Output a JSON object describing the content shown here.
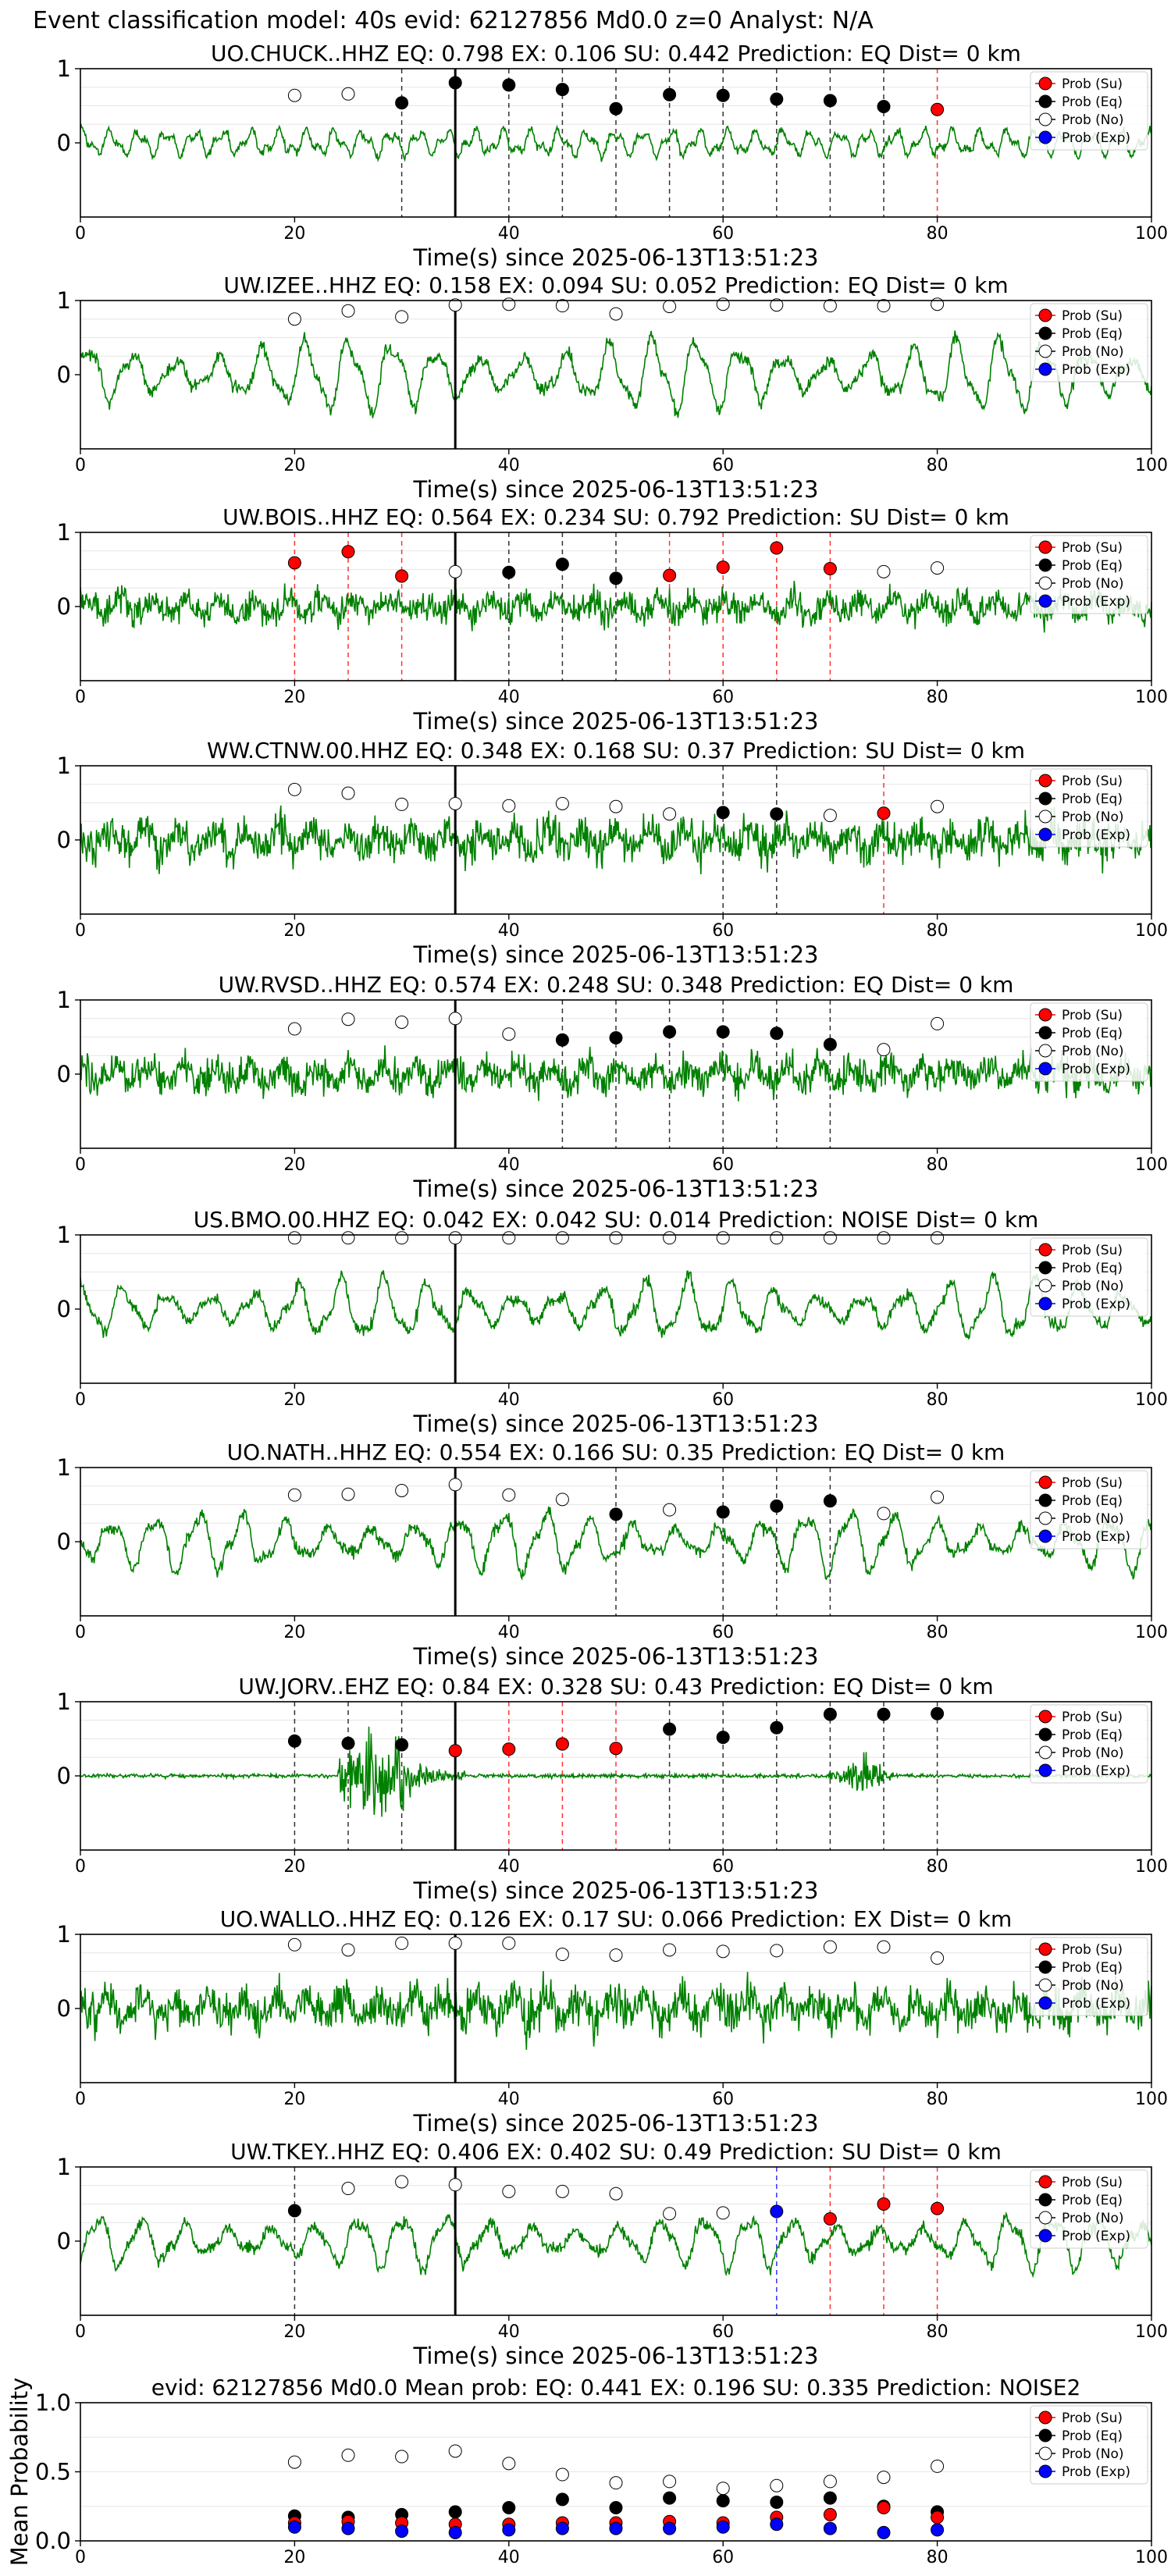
{
  "suptitle": "Event classification model: 40s evid: 62127856 Md0.0 z=0 Analyst: N/A",
  "legend": [
    {
      "label": "Prob (Su)",
      "color": "#ff0000"
    },
    {
      "label": "Prob (Eq)",
      "color": "#000000"
    },
    {
      "label": "Prob (No)",
      "color": "#ffffff"
    },
    {
      "label": "Prob (Exp)",
      "color": "#0000ff"
    }
  ],
  "waveform_color": "#008000",
  "chart_data": [
    {
      "type": "line",
      "title": "UO.CHUCK..HHZ   EQ: 0.798  EX: 0.106  SU: 0.442   Prediction: EQ    Dist= 0 km",
      "xlabel": "Time(s) since 2025-06-13T13:51:23",
      "xlim": [
        0,
        100
      ],
      "ylim": [
        -1,
        1
      ],
      "xticks": [
        0,
        20,
        40,
        60,
        80,
        100
      ],
      "yticks": [
        0,
        1
      ],
      "arrival": 35,
      "wave": {
        "style": "osc",
        "amp": 0.18,
        "seed": 11
      },
      "points": [
        {
          "t": 20,
          "p": 0.64,
          "c": "No"
        },
        {
          "t": 25,
          "p": 0.66,
          "c": "No"
        },
        {
          "t": 30,
          "p": 0.54,
          "c": "Eq"
        },
        {
          "t": 35,
          "p": 0.81,
          "c": "Eq"
        },
        {
          "t": 40,
          "p": 0.78,
          "c": "Eq"
        },
        {
          "t": 45,
          "p": 0.72,
          "c": "Eq"
        },
        {
          "t": 50,
          "p": 0.46,
          "c": "Eq"
        },
        {
          "t": 55,
          "p": 0.65,
          "c": "Eq"
        },
        {
          "t": 60,
          "p": 0.64,
          "c": "Eq"
        },
        {
          "t": 65,
          "p": 0.59,
          "c": "Eq"
        },
        {
          "t": 70,
          "p": 0.57,
          "c": "Eq"
        },
        {
          "t": 75,
          "p": 0.49,
          "c": "Eq"
        },
        {
          "t": 80,
          "p": 0.45,
          "c": "Su"
        }
      ]
    },
    {
      "type": "line",
      "title": "UW.IZEE..HHZ   EQ: 0.158  EX: 0.094  SU: 0.052   Prediction: EQ    Dist= 0 km",
      "xlabel": "Time(s) since 2025-06-13T13:51:23",
      "xlim": [
        0,
        100
      ],
      "ylim": [
        -1,
        1
      ],
      "xticks": [
        0,
        20,
        40,
        60,
        80,
        100
      ],
      "yticks": [
        0,
        1
      ],
      "arrival": 35,
      "wave": {
        "style": "swell",
        "amp": 0.55,
        "seed": 23
      },
      "points": [
        {
          "t": 20,
          "p": 0.75,
          "c": "No"
        },
        {
          "t": 25,
          "p": 0.86,
          "c": "No"
        },
        {
          "t": 30,
          "p": 0.78,
          "c": "No"
        },
        {
          "t": 35,
          "p": 0.94,
          "c": "No"
        },
        {
          "t": 40,
          "p": 0.95,
          "c": "No"
        },
        {
          "t": 45,
          "p": 0.93,
          "c": "No"
        },
        {
          "t": 50,
          "p": 0.82,
          "c": "No"
        },
        {
          "t": 55,
          "p": 0.92,
          "c": "No"
        },
        {
          "t": 60,
          "p": 0.95,
          "c": "No"
        },
        {
          "t": 65,
          "p": 0.94,
          "c": "No"
        },
        {
          "t": 70,
          "p": 0.93,
          "c": "No"
        },
        {
          "t": 75,
          "p": 0.93,
          "c": "No"
        },
        {
          "t": 80,
          "p": 0.95,
          "c": "No"
        }
      ]
    },
    {
      "type": "line",
      "title": "UW.BOIS..HHZ   EQ: 0.564  EX: 0.234  SU: 0.792   Prediction: SU    Dist= 0 km",
      "xlabel": "Time(s) since 2025-06-13T13:51:23",
      "xlim": [
        0,
        100
      ],
      "ylim": [
        -1,
        1
      ],
      "xticks": [
        0,
        20,
        40,
        60,
        80,
        100
      ],
      "yticks": [
        0,
        1
      ],
      "arrival": 35,
      "wave": {
        "style": "noisy",
        "amp": 0.35,
        "seed": 37
      },
      "points": [
        {
          "t": 20,
          "p": 0.59,
          "c": "Su"
        },
        {
          "t": 25,
          "p": 0.74,
          "c": "Su"
        },
        {
          "t": 30,
          "p": 0.41,
          "c": "Su"
        },
        {
          "t": 35,
          "p": 0.47,
          "c": "No"
        },
        {
          "t": 40,
          "p": 0.46,
          "c": "Eq"
        },
        {
          "t": 45,
          "p": 0.57,
          "c": "Eq"
        },
        {
          "t": 50,
          "p": 0.38,
          "c": "Eq"
        },
        {
          "t": 55,
          "p": 0.42,
          "c": "Su"
        },
        {
          "t": 60,
          "p": 0.53,
          "c": "Su"
        },
        {
          "t": 65,
          "p": 0.79,
          "c": "Su"
        },
        {
          "t": 70,
          "p": 0.51,
          "c": "Su"
        },
        {
          "t": 75,
          "p": 0.47,
          "c": "No"
        },
        {
          "t": 80,
          "p": 0.52,
          "c": "No"
        }
      ]
    },
    {
      "type": "line",
      "title": "WW.CTNW.00.HHZ   EQ: 0.348  EX: 0.168  SU: 0.37   Prediction: SU    Dist= 0 km",
      "xlabel": "Time(s) since 2025-06-13T13:51:23",
      "xlim": [
        0,
        100
      ],
      "ylim": [
        -1,
        1
      ],
      "xticks": [
        0,
        20,
        40,
        60,
        80,
        100
      ],
      "yticks": [
        0,
        1
      ],
      "arrival": 35,
      "wave": {
        "style": "noisy",
        "amp": 0.45,
        "seed": 41
      },
      "points": [
        {
          "t": 20,
          "p": 0.68,
          "c": "No"
        },
        {
          "t": 25,
          "p": 0.63,
          "c": "No"
        },
        {
          "t": 30,
          "p": 0.48,
          "c": "No"
        },
        {
          "t": 35,
          "p": 0.49,
          "c": "No"
        },
        {
          "t": 40,
          "p": 0.46,
          "c": "No"
        },
        {
          "t": 45,
          "p": 0.49,
          "c": "No"
        },
        {
          "t": 50,
          "p": 0.45,
          "c": "No"
        },
        {
          "t": 55,
          "p": 0.35,
          "c": "No"
        },
        {
          "t": 60,
          "p": 0.37,
          "c": "Eq"
        },
        {
          "t": 65,
          "p": 0.35,
          "c": "Eq"
        },
        {
          "t": 70,
          "p": 0.33,
          "c": "No"
        },
        {
          "t": 75,
          "p": 0.36,
          "c": "Su"
        },
        {
          "t": 80,
          "p": 0.45,
          "c": "No"
        }
      ]
    },
    {
      "type": "line",
      "title": "UW.RVSD..HHZ   EQ: 0.574  EX: 0.248  SU: 0.348   Prediction: EQ    Dist= 0 km",
      "xlabel": "Time(s) since 2025-06-13T13:51:23",
      "xlim": [
        0,
        100
      ],
      "ylim": [
        -1,
        1
      ],
      "xticks": [
        0,
        20,
        40,
        60,
        80,
        100
      ],
      "yticks": [
        0,
        1
      ],
      "arrival": 35,
      "wave": {
        "style": "noisy",
        "amp": 0.4,
        "seed": 53
      },
      "points": [
        {
          "t": 20,
          "p": 0.61,
          "c": "No"
        },
        {
          "t": 25,
          "p": 0.74,
          "c": "No"
        },
        {
          "t": 30,
          "p": 0.7,
          "c": "No"
        },
        {
          "t": 35,
          "p": 0.75,
          "c": "No"
        },
        {
          "t": 40,
          "p": 0.54,
          "c": "No"
        },
        {
          "t": 45,
          "p": 0.46,
          "c": "Eq"
        },
        {
          "t": 50,
          "p": 0.49,
          "c": "Eq"
        },
        {
          "t": 55,
          "p": 0.57,
          "c": "Eq"
        },
        {
          "t": 60,
          "p": 0.57,
          "c": "Eq"
        },
        {
          "t": 65,
          "p": 0.55,
          "c": "Eq"
        },
        {
          "t": 70,
          "p": 0.4,
          "c": "Eq"
        },
        {
          "t": 75,
          "p": 0.33,
          "c": "No"
        },
        {
          "t": 80,
          "p": 0.68,
          "c": "No"
        }
      ]
    },
    {
      "type": "line",
      "title": "US.BMO.00.HHZ   EQ: 0.042  EX: 0.042  SU: 0.014   Prediction: NOISE    Dist= 0 km",
      "xlabel": "Time(s) since 2025-06-13T13:51:23",
      "xlim": [
        0,
        100
      ],
      "ylim": [
        -1,
        1
      ],
      "xticks": [
        0,
        20,
        40,
        60,
        80,
        100
      ],
      "yticks": [
        0,
        1
      ],
      "arrival": 35,
      "wave": {
        "style": "swell",
        "amp": 0.45,
        "seed": 67
      },
      "points": [
        {
          "t": 20,
          "p": 0.96,
          "c": "No"
        },
        {
          "t": 25,
          "p": 0.96,
          "c": "No"
        },
        {
          "t": 30,
          "p": 0.96,
          "c": "No"
        },
        {
          "t": 35,
          "p": 0.96,
          "c": "No"
        },
        {
          "t": 40,
          "p": 0.96,
          "c": "No"
        },
        {
          "t": 45,
          "p": 0.96,
          "c": "No"
        },
        {
          "t": 50,
          "p": 0.96,
          "c": "No"
        },
        {
          "t": 55,
          "p": 0.96,
          "c": "No"
        },
        {
          "t": 60,
          "p": 0.96,
          "c": "No"
        },
        {
          "t": 65,
          "p": 0.96,
          "c": "No"
        },
        {
          "t": 70,
          "p": 0.96,
          "c": "No"
        },
        {
          "t": 75,
          "p": 0.96,
          "c": "No"
        },
        {
          "t": 80,
          "p": 0.96,
          "c": "No"
        }
      ]
    },
    {
      "type": "line",
      "title": "UO.NATH..HHZ   EQ: 0.554  EX: 0.166  SU: 0.35   Prediction: EQ    Dist= 0 km",
      "xlabel": "Time(s) since 2025-06-13T13:51:23",
      "xlim": [
        0,
        100
      ],
      "ylim": [
        -1,
        1
      ],
      "xticks": [
        0,
        20,
        40,
        60,
        80,
        100
      ],
      "yticks": [
        0,
        1
      ],
      "arrival": 35,
      "wave": {
        "style": "swell",
        "amp": 0.45,
        "seed": 71
      },
      "points": [
        {
          "t": 20,
          "p": 0.63,
          "c": "No"
        },
        {
          "t": 25,
          "p": 0.64,
          "c": "No"
        },
        {
          "t": 30,
          "p": 0.69,
          "c": "No"
        },
        {
          "t": 35,
          "p": 0.77,
          "c": "No"
        },
        {
          "t": 40,
          "p": 0.63,
          "c": "No"
        },
        {
          "t": 45,
          "p": 0.57,
          "c": "No"
        },
        {
          "t": 50,
          "p": 0.37,
          "c": "Eq"
        },
        {
          "t": 55,
          "p": 0.43,
          "c": "No"
        },
        {
          "t": 60,
          "p": 0.4,
          "c": "Eq"
        },
        {
          "t": 65,
          "p": 0.48,
          "c": "Eq"
        },
        {
          "t": 70,
          "p": 0.55,
          "c": "Eq"
        },
        {
          "t": 75,
          "p": 0.38,
          "c": "No"
        },
        {
          "t": 80,
          "p": 0.6,
          "c": "No"
        }
      ]
    },
    {
      "type": "line",
      "title": "UW.JORV..EHZ   EQ: 0.84  EX: 0.328  SU: 0.43   Prediction: EQ    Dist= 0 km",
      "xlabel": "Time(s) since 2025-06-13T13:51:23",
      "xlim": [
        0,
        100
      ],
      "ylim": [
        -1,
        1
      ],
      "xticks": [
        0,
        20,
        40,
        60,
        80,
        100
      ],
      "yticks": [
        0,
        1
      ],
      "arrival": 35,
      "wave": {
        "style": "event",
        "amp": 0.02,
        "seed": 83
      },
      "points": [
        {
          "t": 20,
          "p": 0.47,
          "c": "Eq"
        },
        {
          "t": 25,
          "p": 0.44,
          "c": "Eq"
        },
        {
          "t": 30,
          "p": 0.42,
          "c": "Eq"
        },
        {
          "t": 35,
          "p": 0.34,
          "c": "Su"
        },
        {
          "t": 40,
          "p": 0.36,
          "c": "Su"
        },
        {
          "t": 45,
          "p": 0.43,
          "c": "Su"
        },
        {
          "t": 50,
          "p": 0.37,
          "c": "Su"
        },
        {
          "t": 55,
          "p": 0.63,
          "c": "Eq"
        },
        {
          "t": 60,
          "p": 0.52,
          "c": "Eq"
        },
        {
          "t": 65,
          "p": 0.65,
          "c": "Eq"
        },
        {
          "t": 70,
          "p": 0.83,
          "c": "Eq"
        },
        {
          "t": 75,
          "p": 0.83,
          "c": "Eq"
        },
        {
          "t": 80,
          "p": 0.84,
          "c": "Eq"
        }
      ]
    },
    {
      "type": "line",
      "title": "UO.WALLO..HHZ   EQ: 0.126  EX: 0.17  SU: 0.066   Prediction: EX    Dist= 0 km",
      "xlabel": "Time(s) since 2025-06-13T13:51:23",
      "xlim": [
        0,
        100
      ],
      "ylim": [
        -1,
        1
      ],
      "xticks": [
        0,
        20,
        40,
        60,
        80,
        100
      ],
      "yticks": [
        0,
        1
      ],
      "arrival": 35,
      "wave": {
        "style": "noisy",
        "amp": 0.5,
        "seed": 97
      },
      "points": [
        {
          "t": 20,
          "p": 0.86,
          "c": "No"
        },
        {
          "t": 25,
          "p": 0.79,
          "c": "No"
        },
        {
          "t": 30,
          "p": 0.88,
          "c": "No"
        },
        {
          "t": 35,
          "p": 0.88,
          "c": "No"
        },
        {
          "t": 40,
          "p": 0.88,
          "c": "No"
        },
        {
          "t": 45,
          "p": 0.73,
          "c": "No"
        },
        {
          "t": 50,
          "p": 0.72,
          "c": "No"
        },
        {
          "t": 55,
          "p": 0.79,
          "c": "No"
        },
        {
          "t": 60,
          "p": 0.77,
          "c": "No"
        },
        {
          "t": 65,
          "p": 0.78,
          "c": "No"
        },
        {
          "t": 70,
          "p": 0.83,
          "c": "No"
        },
        {
          "t": 75,
          "p": 0.83,
          "c": "No"
        },
        {
          "t": 80,
          "p": 0.68,
          "c": "No"
        }
      ]
    },
    {
      "type": "line",
      "title": "UW.TKEY..HHZ   EQ: 0.406  EX: 0.402  SU: 0.49   Prediction: SU    Dist= 0 km",
      "xlabel": "Time(s) since 2025-06-13T13:51:23",
      "xlim": [
        0,
        100
      ],
      "ylim": [
        -1,
        1
      ],
      "xticks": [
        0,
        20,
        40,
        60,
        80,
        100
      ],
      "yticks": [
        0,
        1
      ],
      "arrival": 35,
      "wave": {
        "style": "swell",
        "amp": 0.4,
        "seed": 103
      },
      "points": [
        {
          "t": 20,
          "p": 0.41,
          "c": "Eq"
        },
        {
          "t": 25,
          "p": 0.71,
          "c": "No"
        },
        {
          "t": 30,
          "p": 0.8,
          "c": "No"
        },
        {
          "t": 35,
          "p": 0.76,
          "c": "No"
        },
        {
          "t": 40,
          "p": 0.67,
          "c": "No"
        },
        {
          "t": 45,
          "p": 0.67,
          "c": "No"
        },
        {
          "t": 50,
          "p": 0.64,
          "c": "No"
        },
        {
          "t": 55,
          "p": 0.37,
          "c": "No"
        },
        {
          "t": 60,
          "p": 0.38,
          "c": "No"
        },
        {
          "t": 65,
          "p": 0.4,
          "c": "Exp"
        },
        {
          "t": 70,
          "p": 0.3,
          "c": "Su"
        },
        {
          "t": 75,
          "p": 0.5,
          "c": "Su"
        },
        {
          "t": 80,
          "p": 0.44,
          "c": "Su"
        }
      ]
    },
    {
      "type": "scatter",
      "title": "evid: 62127856  Md0.0   Mean prob:   EQ: 0.441  EX: 0.196  SU: 0.335   Prediction: NOISE2",
      "ylabel": "Mean Probability",
      "xlim": [
        0,
        100
      ],
      "ylim": [
        0,
        1
      ],
      "xticks": [
        0,
        20,
        40,
        60,
        80,
        100
      ],
      "yticks": [
        0.0,
        0.5,
        1.0
      ],
      "ytick_labels": [
        "0.0",
        "0.5",
        "1.0"
      ],
      "x": [
        20,
        25,
        30,
        35,
        40,
        45,
        50,
        55,
        60,
        65,
        70,
        75,
        80
      ],
      "series": [
        {
          "name": "Prob (No)",
          "values": [
            0.57,
            0.62,
            0.61,
            0.65,
            0.56,
            0.48,
            0.42,
            0.43,
            0.38,
            0.4,
            0.43,
            0.46,
            0.54
          ]
        },
        {
          "name": "Prob (Eq)",
          "values": [
            0.18,
            0.17,
            0.19,
            0.21,
            0.24,
            0.3,
            0.24,
            0.31,
            0.29,
            0.28,
            0.31,
            0.25,
            0.21
          ]
        },
        {
          "name": "Prob (Su)",
          "values": [
            0.13,
            0.14,
            0.13,
            0.12,
            0.12,
            0.13,
            0.13,
            0.14,
            0.13,
            0.17,
            0.19,
            0.24,
            0.17
          ]
        },
        {
          "name": "Prob (Exp)",
          "values": [
            0.1,
            0.09,
            0.07,
            0.06,
            0.08,
            0.09,
            0.09,
            0.09,
            0.1,
            0.12,
            0.09,
            0.06,
            0.08
          ]
        }
      ]
    }
  ]
}
